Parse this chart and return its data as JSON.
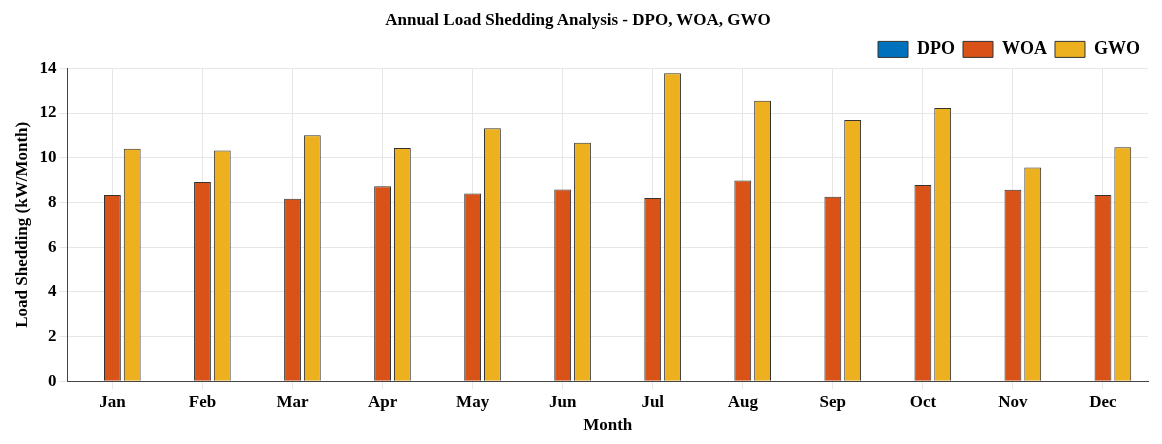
{
  "chart_data": {
    "type": "bar",
    "title": "Annual Load Shedding Analysis - DPO, WOA, GWO",
    "xlabel": "Month",
    "ylabel": "Load Shedding (kW/Month)",
    "categories": [
      "Jan",
      "Feb",
      "Mar",
      "Apr",
      "May",
      "Jun",
      "Jul",
      "Aug",
      "Sep",
      "Oct",
      "Nov",
      "Dec"
    ],
    "series": [
      {
        "name": "DPO",
        "color": "#0072bd",
        "values": [
          0,
          0,
          0,
          0,
          0,
          0,
          0,
          0,
          0,
          0,
          0,
          0
        ]
      },
      {
        "name": "WOA",
        "color": "#d95319",
        "values": [
          8.33,
          8.92,
          8.17,
          8.73,
          8.4,
          8.58,
          8.2,
          8.98,
          8.26,
          8.78,
          8.57,
          8.33
        ]
      },
      {
        "name": "GWO",
        "color": "#edb120",
        "values": [
          10.4,
          10.33,
          11.01,
          10.44,
          11.32,
          10.67,
          13.78,
          12.55,
          11.69,
          12.23,
          9.57,
          10.47
        ]
      }
    ],
    "ylim": [
      0,
      14
    ],
    "yticks": [
      0,
      2,
      4,
      6,
      8,
      10,
      12,
      14
    ],
    "grid": true,
    "legend": "top right"
  }
}
